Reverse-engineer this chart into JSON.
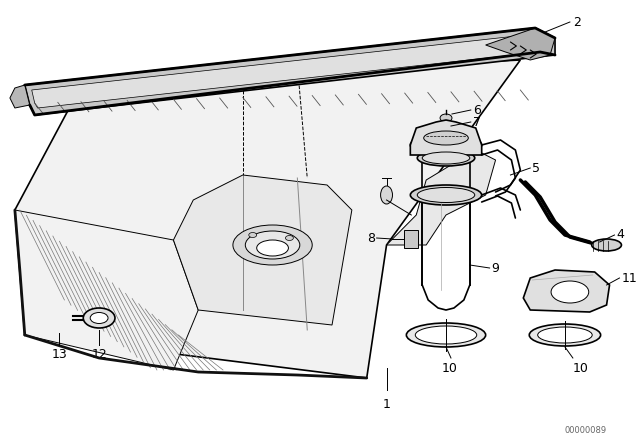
{
  "background_color": "#ffffff",
  "line_color": "#000000",
  "figure_width": 6.4,
  "figure_height": 4.48,
  "dpi": 100,
  "watermark": "00000089",
  "lw_main": 1.2,
  "lw_thin": 0.7,
  "lw_thick": 2.0
}
